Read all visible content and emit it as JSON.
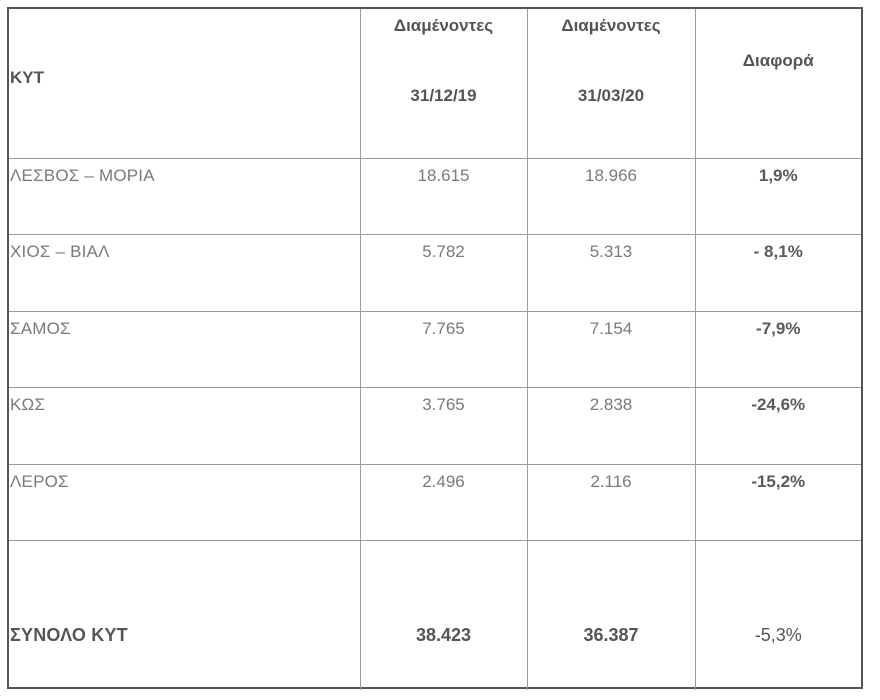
{
  "table": {
    "headers": {
      "kyt": "ΚΥΤ",
      "col1_line1": "Διαμένοντες",
      "col1_line2": "31/12/19",
      "col2_line1": "Διαμένοντες",
      "col2_line2": "31/03/20",
      "diff": "Διαφορά"
    },
    "rows": [
      {
        "name": "ΛΕΣΒΟΣ – ΜΟΡΙΑ",
        "v1": "18.615",
        "v2": "18.966",
        "diff": "1,9%"
      },
      {
        "name": "ΧΙΟΣ – ΒΙΑΛ",
        "v1": "5.782",
        "v2": "5.313",
        "diff": "- 8,1%"
      },
      {
        "name": "ΣΑΜΟΣ",
        "v1": "7.765",
        "v2": "7.154",
        "diff": "-7,9%"
      },
      {
        "name": "ΚΩΣ",
        "v1": "3.765",
        "v2": "2.838",
        "diff": "-24,6%"
      },
      {
        "name": "ΛΕΡΟΣ",
        "v1": "2.496",
        "v2": "2.116",
        "diff": "-15,2%"
      }
    ],
    "total": {
      "name": "ΣΥΝΟΛΟ ΚΥΤ",
      "v1": "38.423",
      "v2": "36.387",
      "diff": "-5,3%"
    }
  },
  "colors": {
    "outer_border": "#555555",
    "inner_border": "#9a9a9a",
    "header_text": "#555555",
    "body_text": "#7a7a7a"
  }
}
